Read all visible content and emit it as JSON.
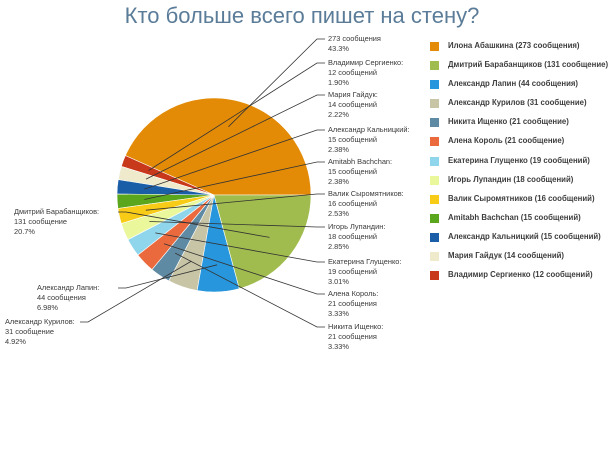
{
  "chart_data": {
    "type": "pie",
    "title": "Кто больше всего пишет на стену?",
    "slices": [
      {
        "name": "Илона Абашкина",
        "value": 273,
        "percent": "43.3%",
        "color": "#e38b07",
        "callout": [
          "273 сообщения",
          "43.3%"
        ],
        "legend": "Илона Абашкина (273 сообщения)"
      },
      {
        "name": "Владимир Сергиенко",
        "value": 12,
        "percent": "1.90%",
        "color": "#c8391c",
        "callout": [
          "Владимир Сергиенко:",
          "12 сообщений",
          "1.90%"
        ],
        "legend": "Владимир Сергиенко (12 сообщений)"
      },
      {
        "name": "Мария Гайдук",
        "value": 14,
        "percent": "2.22%",
        "color": "#eeeacb",
        "callout": [
          "Мария Гайдук:",
          "14 сообщений",
          "2.22%"
        ],
        "legend": "Мария Гайдук (14 сообщений)"
      },
      {
        "name": "Александр Кальницкий",
        "value": 15,
        "percent": "2.38%",
        "color": "#1a5ea8",
        "callout": [
          "Александр Кальницкий:",
          "15 сообщений",
          "2.38%"
        ],
        "legend": "Александр Кальницкий (15 сообщений)"
      },
      {
        "name": "Amitabh Bachchan",
        "value": 15,
        "percent": "2.38%",
        "color": "#5aa61c",
        "callout": [
          "Amitabh Bachchan:",
          "15 сообщений",
          "2.38%"
        ],
        "legend": "Amitabh Bachchan (15 сообщений)"
      },
      {
        "name": "Валик Сыромятников",
        "value": 16,
        "percent": "2.53%",
        "color": "#f8cc16",
        "callout": [
          "Валик Сыромятников:",
          "16 сообщений",
          "2.53%"
        ],
        "legend": "Валик Сыромятников (16 сообщений)"
      },
      {
        "name": "Игорь Лупандин",
        "value": 18,
        "percent": "2.85%",
        "color": "#eaf79a",
        "callout": [
          "Игорь Лупандин:",
          "18 сообщений",
          "2.85%"
        ],
        "legend": "Игорь Лупандин (18 сообщений)"
      },
      {
        "name": "Екатерина Глущенко",
        "value": 19,
        "percent": "3.01%",
        "color": "#8fd6ec",
        "callout": [
          "Екатерина Глущенко:",
          "19 сообщений",
          "3.01%"
        ],
        "legend": "Екатерина Глущенко (19 сообщений)"
      },
      {
        "name": "Алена Король",
        "value": 21,
        "percent": "3.33%",
        "color": "#ea6a3e",
        "callout": [
          "Алена Король:",
          "21 сообщения",
          "3.33%"
        ],
        "legend": "Алена Король (21 сообщение)"
      },
      {
        "name": "Никита Ищенко",
        "value": 21,
        "percent": "3.33%",
        "color": "#5f8aa3",
        "callout": [
          "Никита Ищенко:",
          "21 сообщения",
          "3.33%"
        ],
        "legend": "Никита Ищенко (21 сообщение)"
      },
      {
        "name": "Александр Курилов",
        "value": 31,
        "percent": "4.92%",
        "color": "#c8c4a6",
        "callout": [
          "Александр Курилов:",
          "31 сообщение",
          "4.92%"
        ],
        "legend": "Александр Курилов (31 сообщение)"
      },
      {
        "name": "Александр Лапин",
        "value": 44,
        "percent": "6.98%",
        "color": "#2796dc",
        "callout": [
          "Александр Лапин:",
          "44 сообщения",
          "6.98%"
        ],
        "legend": "Александр Лапин (44 сообщения)"
      },
      {
        "name": "Дмитрий Барабанщиков",
        "value": 131,
        "percent": "20.7%",
        "color": "#a1bc4e",
        "callout": [
          "Дмитрий Барабанщиков:",
          "131 сообщение",
          "20.7%"
        ],
        "legend": "Дмитрий Барабанщиков (131 сообщение)"
      }
    ],
    "legend_order": [
      0,
      12,
      11,
      10,
      9,
      8,
      7,
      6,
      5,
      4,
      3,
      2,
      1
    ],
    "legend_placement": "right"
  }
}
